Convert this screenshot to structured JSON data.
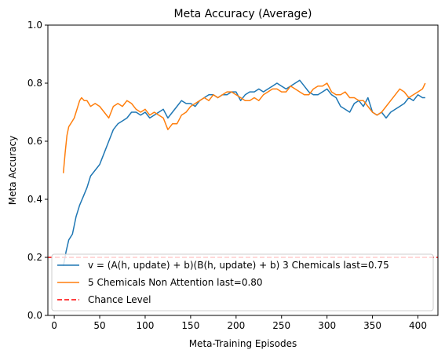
{
  "chart_data": {
    "type": "line",
    "title": "Meta Accuracy (Average)",
    "xlabel": "Meta-Training Episodes",
    "ylabel": "Meta Accuracy",
    "xlim": [
      -7,
      422
    ],
    "ylim": [
      0.0,
      1.0
    ],
    "xticks": [
      0,
      50,
      100,
      150,
      200,
      250,
      300,
      350,
      400
    ],
    "yticks": [
      0.0,
      0.2,
      0.4,
      0.6,
      0.8,
      1.0
    ],
    "xtick_labels": [
      "0",
      "50",
      "100",
      "150",
      "200",
      "250",
      "300",
      "350",
      "400"
    ],
    "ytick_labels": [
      "0.0",
      "0.2",
      "0.4",
      "0.6",
      "0.8",
      "1.0"
    ],
    "grid": false,
    "legend_position": "lower-center",
    "series": [
      {
        "name": "v = (A(h, update) + b)(B(h, update) + b) 3 Chemicals last=0.75",
        "color": "#1f77b4",
        "x": [
          10,
          13,
          16,
          20,
          24,
          28,
          32,
          36,
          40,
          45,
          50,
          55,
          60,
          65,
          70,
          75,
          80,
          85,
          90,
          95,
          100,
          105,
          110,
          115,
          120,
          125,
          130,
          135,
          140,
          145,
          150,
          155,
          160,
          165,
          170,
          175,
          180,
          185,
          190,
          195,
          200,
          205,
          210,
          215,
          220,
          225,
          230,
          235,
          240,
          245,
          250,
          255,
          260,
          265,
          270,
          275,
          280,
          285,
          290,
          295,
          300,
          305,
          310,
          315,
          320,
          325,
          330,
          335,
          340,
          345,
          350,
          355,
          360,
          365,
          370,
          375,
          380,
          385,
          390,
          395,
          400,
          405,
          408
        ],
        "y": [
          0.17,
          0.22,
          0.26,
          0.28,
          0.34,
          0.38,
          0.41,
          0.44,
          0.48,
          0.5,
          0.52,
          0.56,
          0.6,
          0.64,
          0.66,
          0.67,
          0.68,
          0.7,
          0.7,
          0.69,
          0.7,
          0.68,
          0.69,
          0.7,
          0.71,
          0.68,
          0.7,
          0.72,
          0.74,
          0.73,
          0.73,
          0.72,
          0.74,
          0.75,
          0.76,
          0.76,
          0.75,
          0.76,
          0.76,
          0.77,
          0.77,
          0.74,
          0.76,
          0.77,
          0.77,
          0.78,
          0.77,
          0.78,
          0.79,
          0.8,
          0.79,
          0.78,
          0.79,
          0.8,
          0.81,
          0.79,
          0.77,
          0.76,
          0.76,
          0.77,
          0.78,
          0.76,
          0.75,
          0.72,
          0.71,
          0.7,
          0.73,
          0.74,
          0.72,
          0.75,
          0.7,
          0.69,
          0.7,
          0.68,
          0.7,
          0.71,
          0.72,
          0.73,
          0.75,
          0.74,
          0.76,
          0.75,
          0.75
        ]
      },
      {
        "name": "5 Chemicals Non Attention last=0.80",
        "color": "#ff7f0e",
        "x": [
          10,
          12,
          14,
          16,
          18,
          20,
          22,
          24,
          26,
          28,
          30,
          33,
          36,
          40,
          45,
          50,
          55,
          60,
          65,
          70,
          75,
          80,
          85,
          90,
          95,
          100,
          105,
          110,
          115,
          120,
          125,
          130,
          135,
          140,
          145,
          150,
          155,
          160,
          165,
          170,
          175,
          180,
          185,
          190,
          195,
          200,
          205,
          210,
          215,
          220,
          225,
          230,
          235,
          240,
          245,
          250,
          255,
          260,
          265,
          270,
          275,
          280,
          285,
          290,
          295,
          300,
          305,
          310,
          315,
          320,
          325,
          330,
          335,
          340,
          345,
          350,
          355,
          360,
          365,
          370,
          375,
          380,
          385,
          390,
          395,
          400,
          405,
          408
        ],
        "y": [
          0.49,
          0.56,
          0.62,
          0.65,
          0.66,
          0.67,
          0.68,
          0.7,
          0.72,
          0.74,
          0.75,
          0.74,
          0.74,
          0.72,
          0.73,
          0.72,
          0.7,
          0.68,
          0.72,
          0.73,
          0.72,
          0.74,
          0.73,
          0.71,
          0.7,
          0.71,
          0.69,
          0.7,
          0.69,
          0.68,
          0.64,
          0.66,
          0.66,
          0.69,
          0.7,
          0.72,
          0.73,
          0.74,
          0.75,
          0.74,
          0.76,
          0.75,
          0.76,
          0.77,
          0.77,
          0.76,
          0.75,
          0.74,
          0.74,
          0.75,
          0.74,
          0.76,
          0.77,
          0.78,
          0.78,
          0.77,
          0.77,
          0.79,
          0.78,
          0.77,
          0.76,
          0.76,
          0.78,
          0.79,
          0.79,
          0.8,
          0.77,
          0.76,
          0.76,
          0.77,
          0.75,
          0.75,
          0.74,
          0.74,
          0.72,
          0.7,
          0.69,
          0.7,
          0.72,
          0.74,
          0.76,
          0.78,
          0.77,
          0.75,
          0.76,
          0.77,
          0.78,
          0.8
        ]
      }
    ],
    "reference_lines": [
      {
        "name": "Chance Level",
        "y": 0.2,
        "color": "#ff0000",
        "style": "dashed"
      }
    ],
    "legend": [
      {
        "label": "v = (A(h, update) + b)(B(h, update) + b) 3 Chemicals last=0.75",
        "color": "#1f77b4",
        "style": "solid"
      },
      {
        "label": "5 Chemicals Non Attention last=0.80",
        "color": "#ff7f0e",
        "style": "solid"
      },
      {
        "label": "Chance Level",
        "color": "#ff0000",
        "style": "dashed"
      }
    ]
  }
}
